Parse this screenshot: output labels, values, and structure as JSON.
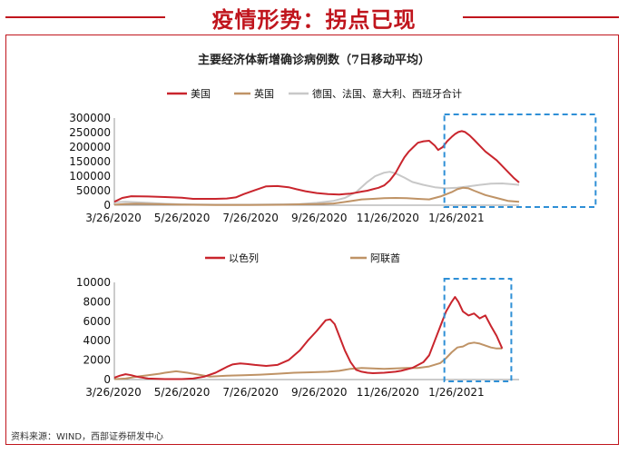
{
  "page": {
    "title": "疫情形势：拐点已现",
    "source": "资料来源：WIND，西部证券研发中心"
  },
  "colors": {
    "red": "#c9252d",
    "tan": "#bf9366",
    "grey": "#c8c8c8",
    "highlight": "#2e8fd6"
  },
  "chart_data": [
    {
      "type": "line",
      "title": "主要经济体新增确诊病例数（7日移动平均）",
      "x_tick_labels": [
        "3/26/2020",
        "5/26/2020",
        "7/26/2020",
        "9/26/2020",
        "11/26/2020",
        "1/26/2021"
      ],
      "y_tick_labels": [
        "0",
        "50000",
        "100000",
        "150000",
        "200000",
        "250000",
        "300000"
      ],
      "ylim": [
        0,
        300000
      ],
      "legend_position": "top",
      "highlight_box": [
        300,
        420
      ],
      "series": [
        {
          "name": "美国",
          "color": "#c9252d",
          "x": [
            0,
            7,
            15,
            30,
            45,
            60,
            70,
            80,
            90,
            100,
            108,
            115,
            125,
            135,
            145,
            155,
            162,
            170,
            180,
            190,
            200,
            210,
            215,
            220,
            225,
            230,
            235,
            240,
            245,
            250,
            255,
            258,
            262,
            266,
            270,
            275,
            280,
            285,
            288,
            292,
            296,
            300,
            303,
            306,
            309,
            312,
            316,
            320,
            325,
            330,
            340,
            350,
            355,
            360
          ],
          "y": [
            12000,
            25000,
            31000,
            30000,
            28000,
            26000,
            22000,
            22000,
            22000,
            23000,
            27000,
            38000,
            52000,
            65000,
            66000,
            62000,
            55000,
            48000,
            42000,
            38000,
            37000,
            40000,
            43000,
            47000,
            50000,
            55000,
            60000,
            68000,
            85000,
            110000,
            145000,
            165000,
            185000,
            200000,
            215000,
            220000,
            222000,
            205000,
            190000,
            200000,
            220000,
            235000,
            245000,
            252000,
            255000,
            252000,
            240000,
            225000,
            205000,
            185000,
            155000,
            115000,
            95000,
            78000
          ]
        },
        {
          "name": "英国",
          "color": "#bf9366",
          "x": [
            0,
            10,
            20,
            30,
            45,
            60,
            90,
            120,
            150,
            165,
            180,
            195,
            210,
            220,
            230,
            240,
            250,
            260,
            270,
            280,
            290,
            300,
            305,
            310,
            315,
            320,
            330,
            340,
            350,
            360
          ],
          "y": [
            2000,
            4000,
            5000,
            4500,
            3000,
            2000,
            1000,
            800,
            1500,
            3000,
            4000,
            6000,
            14000,
            20000,
            22000,
            24000,
            25000,
            24000,
            22000,
            20000,
            30000,
            45000,
            55000,
            60000,
            58000,
            50000,
            35000,
            25000,
            15000,
            12000
          ]
        },
        {
          "name": "德国、法国、意大利、西班牙合计",
          "color": "#c8c8c8",
          "x": [
            0,
            10,
            20,
            30,
            45,
            60,
            90,
            120,
            150,
            165,
            180,
            195,
            205,
            215,
            225,
            232,
            240,
            245,
            250,
            258,
            265,
            275,
            285,
            295,
            305,
            315,
            325,
            335,
            345,
            355,
            360
          ],
          "y": [
            10000,
            12000,
            10000,
            8000,
            5000,
            3000,
            2000,
            2000,
            3000,
            4000,
            8000,
            15000,
            25000,
            45000,
            80000,
            100000,
            112000,
            115000,
            110000,
            95000,
            80000,
            70000,
            62000,
            58000,
            60000,
            65000,
            70000,
            74000,
            75000,
            72000,
            70000
          ]
        }
      ]
    },
    {
      "type": "line",
      "x_tick_labels": [
        "3/26/2020",
        "5/26/2020",
        "7/26/2020",
        "9/26/2020",
        "11/26/2020",
        "1/26/2021"
      ],
      "y_tick_labels": [
        "0",
        "2000",
        "4000",
        "6000",
        "8000",
        "10000"
      ],
      "ylim": [
        0,
        10000
      ],
      "legend_position": "top",
      "highlight_box": [
        300,
        345
      ],
      "series": [
        {
          "name": "以色列",
          "color": "#c9252d",
          "x": [
            0,
            5,
            10,
            15,
            20,
            30,
            45,
            60,
            70,
            80,
            90,
            95,
            100,
            105,
            108,
            112,
            118,
            125,
            135,
            145,
            155,
            165,
            172,
            180,
            188,
            192,
            196,
            200,
            205,
            210,
            215,
            220,
            225,
            230,
            240,
            250,
            255,
            265,
            275,
            280,
            285,
            290,
            295,
            300,
            303,
            306,
            310,
            315,
            320,
            325,
            330,
            335,
            340,
            345
          ],
          "y": [
            200,
            400,
            550,
            450,
            300,
            100,
            50,
            50,
            100,
            300,
            700,
            1000,
            1300,
            1550,
            1600,
            1650,
            1600,
            1500,
            1400,
            1500,
            2000,
            3000,
            4000,
            5000,
            6100,
            6200,
            5700,
            4500,
            3000,
            1800,
            1000,
            800,
            700,
            650,
            700,
            800,
            900,
            1200,
            1800,
            2500,
            4000,
            5500,
            7000,
            8000,
            8500,
            8000,
            7000,
            6600,
            6800,
            6300,
            6600,
            5500,
            4500,
            3200
          ]
        },
        {
          "name": "阿联酋",
          "color": "#bf9366",
          "x": [
            0,
            10,
            20,
            30,
            40,
            45,
            55,
            65,
            75,
            85,
            100,
            115,
            130,
            145,
            160,
            175,
            190,
            200,
            210,
            220,
            230,
            240,
            250,
            260,
            270,
            280,
            290,
            295,
            300,
            305,
            310,
            315,
            320,
            325,
            330,
            335,
            340,
            345
          ],
          "y": [
            50,
            100,
            300,
            450,
            600,
            700,
            850,
            700,
            500,
            300,
            400,
            450,
            500,
            600,
            700,
            750,
            800,
            900,
            1100,
            1200,
            1150,
            1100,
            1150,
            1200,
            1200,
            1350,
            1700,
            2200,
            2800,
            3300,
            3400,
            3700,
            3800,
            3700,
            3500,
            3300,
            3200,
            3200
          ]
        }
      ]
    }
  ]
}
